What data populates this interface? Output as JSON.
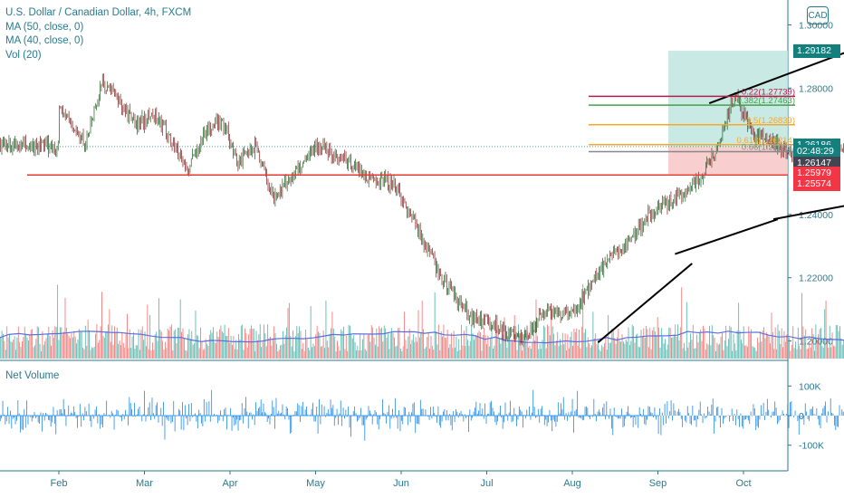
{
  "legend": {
    "title": "U.S. Dollar / Canadian Dollar, 4h, FXCM",
    "indicators": [
      "MA (50, close, 0)",
      "MA (40, close, 0)",
      "Vol (20)"
    ]
  },
  "currency_button": "CAD",
  "net_volume_label": "Net Volume",
  "price_tags": [
    {
      "label": "1.29182",
      "color": "#13807e",
      "price": 1.29182
    },
    {
      "label": "1.26186",
      "color": "#13807e",
      "price": 1.26186
    },
    {
      "label": "02:48:29",
      "color": "#13807e",
      "price": 1.2598
    },
    {
      "label": "1.26147",
      "color": "#434651",
      "price": 1.2562
    },
    {
      "label": "1.25979",
      "color": "#f23645",
      "price": 1.2529
    },
    {
      "label": "1.25574",
      "color": "#f23645",
      "price": 1.2496
    }
  ],
  "chart_data": {
    "type": "line",
    "x_ticks": [
      "Feb",
      "Mar",
      "Apr",
      "May",
      "Jun",
      "Jul",
      "Aug",
      "Sep",
      "Oct"
    ],
    "y_ticks": [
      "1.30000",
      "1.28000",
      "1.26000",
      "1.24000",
      "1.22000",
      "1.20000"
    ],
    "ylim": [
      1.195,
      1.305
    ],
    "net_volume_ticks": [
      "100K",
      "0",
      "-100K"
    ],
    "net_volume_ylim": [
      -150000,
      150000
    ],
    "price_series": {
      "points": [
        [
          0,
          1.274
        ],
        [
          0.15,
          1.268
        ],
        [
          0.3,
          1.262
        ],
        [
          0.5,
          1.282
        ],
        [
          0.7,
          1.276
        ],
        [
          0.9,
          1.268
        ],
        [
          1.1,
          1.272
        ],
        [
          1.3,
          1.264
        ],
        [
          1.5,
          1.254
        ],
        [
          1.7,
          1.266
        ],
        [
          1.9,
          1.27
        ],
        [
          2.1,
          1.256
        ],
        [
          2.3,
          1.262
        ],
        [
          2.5,
          1.245
        ],
        [
          2.8,
          1.255
        ],
        [
          3.0,
          1.262
        ],
        [
          3.3,
          1.258
        ],
        [
          3.6,
          1.252
        ],
        [
          3.9,
          1.25
        ],
        [
          4.2,
          1.235
        ],
        [
          4.5,
          1.218
        ],
        [
          4.8,
          1.208
        ],
        [
          5.1,
          1.205
        ],
        [
          5.4,
          1.2
        ],
        [
          5.7,
          1.21
        ],
        [
          6.0,
          1.208
        ],
        [
          6.3,
          1.222
        ],
        [
          6.6,
          1.23
        ],
        [
          6.9,
          1.24
        ],
        [
          7.2,
          1.245
        ],
        [
          7.5,
          1.252
        ],
        [
          7.7,
          1.262
        ],
        [
          7.9,
          1.278
        ],
        [
          8.1,
          1.265
        ],
        [
          8.4,
          1.262
        ],
        [
          8.7,
          1.255
        ],
        [
          9.0,
          1.258
        ],
        [
          9.3,
          1.265
        ],
        [
          9.5,
          1.272
        ],
        [
          9.65,
          1.29
        ],
        [
          9.8,
          1.278
        ],
        [
          9.95,
          1.2615
        ]
      ]
    },
    "volume_series": {
      "note_source": "Vol (20)",
      "colors": {
        "up": "#26a69a",
        "down": "#ef5350",
        "ma": "#5b6ee1"
      }
    },
    "trendlines": [
      {
        "from": [
          6.3,
          1.1995
        ],
        "to": [
          7.4,
          1.2245
        ],
        "color": "#000000"
      },
      {
        "from": [
          7.2,
          1.2275
        ],
        "to": [
          8.4,
          1.2385
        ],
        "color": "#000000"
      },
      {
        "from": [
          8.35,
          1.2385
        ],
        "to": [
          10.8,
          1.251
        ],
        "color": "#000000"
      },
      {
        "from": [
          7.6,
          1.2752
        ],
        "to": [
          10.8,
          1.3075
        ],
        "color": "#000000"
      }
    ],
    "support_line": {
      "price": 1.2525,
      "color": "#e53935"
    },
    "fib_levels": [
      {
        "ratio": "0.22",
        "label": "0.22(1.27739)",
        "price": 1.2774,
        "color": "#b71c4a"
      },
      {
        "ratio": "0.382",
        "label": "0.382(1.27463)",
        "price": 1.2746,
        "color": "#43a047"
      },
      {
        "ratio": "0.5",
        "label": "0.5(1.26839)",
        "price": 1.2684,
        "color": "#f9a825"
      },
      {
        "ratio": "0.618",
        "label": "0.618(1.26214)",
        "price": 1.2621,
        "color": "#f9a825"
      },
      {
        "ratio": "0.66",
        "label": "0.66(1.25992)",
        "price": 1.2599,
        "color": "#888888"
      }
    ],
    "position_box": {
      "target_top": 1.2918,
      "entry": 1.2613,
      "stop": 1.2528
    }
  }
}
